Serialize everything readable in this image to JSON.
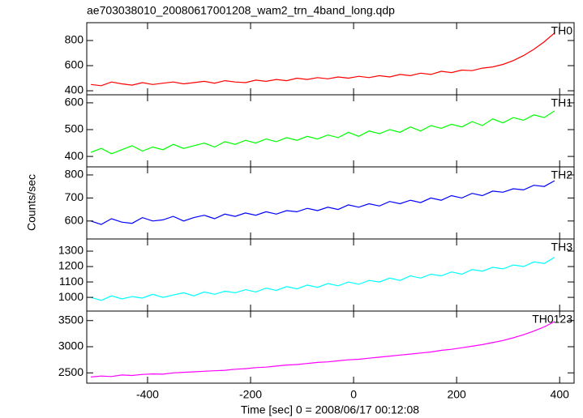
{
  "chart_data": {
    "type": "line",
    "title": "ae703038010_20080617001208_wam2_trn_4band_long.qdp",
    "x_label": "Time [sec] 0 = 2008/06/17 00:12:08",
    "y_label": "Counts/sec",
    "xlim": [
      -518,
      428
    ],
    "xticks": [
      -400,
      -200,
      0,
      200,
      400
    ],
    "x": [
      -510,
      -490,
      -470,
      -450,
      -430,
      -410,
      -390,
      -370,
      -350,
      -330,
      -310,
      -290,
      -270,
      -250,
      -230,
      -210,
      -190,
      -170,
      -150,
      -130,
      -110,
      -90,
      -70,
      -50,
      -30,
      -10,
      10,
      30,
      50,
      70,
      90,
      110,
      130,
      150,
      170,
      190,
      210,
      230,
      250,
      270,
      290,
      310,
      330,
      350,
      370,
      390
    ],
    "series": [
      {
        "name": "TH0",
        "color": "#ff0000",
        "ylim": [
          368,
          942
        ],
        "yticks": [
          400,
          600,
          800
        ],
        "values": [
          450,
          440,
          470,
          455,
          445,
          465,
          450,
          460,
          470,
          455,
          465,
          475,
          460,
          480,
          470,
          465,
          485,
          475,
          490,
          480,
          500,
          490,
          505,
          495,
          510,
          500,
          515,
          505,
          520,
          510,
          530,
          520,
          540,
          530,
          555,
          545,
          565,
          560,
          580,
          590,
          610,
          640,
          680,
          730,
          790,
          860
        ]
      },
      {
        "name": "TH1",
        "color": "#00ff00",
        "ylim": [
          361,
          630
        ],
        "yticks": [
          400,
          500,
          600
        ],
        "values": [
          415,
          430,
          410,
          425,
          440,
          420,
          435,
          425,
          445,
          430,
          440,
          450,
          435,
          455,
          445,
          460,
          450,
          465,
          455,
          470,
          460,
          475,
          465,
          480,
          470,
          490,
          475,
          495,
          485,
          500,
          490,
          510,
          495,
          515,
          505,
          520,
          510,
          530,
          515,
          540,
          525,
          545,
          535,
          555,
          545,
          570
        ]
      },
      {
        "name": "TH2",
        "color": "#0000ff",
        "ylim": [
          522,
          835
        ],
        "yticks": [
          600,
          700,
          800
        ],
        "values": [
          600,
          585,
          610,
          595,
          590,
          615,
          600,
          605,
          620,
          600,
          615,
          625,
          610,
          630,
          620,
          635,
          625,
          640,
          630,
          645,
          640,
          655,
          645,
          660,
          650,
          670,
          660,
          675,
          665,
          685,
          675,
          690,
          680,
          700,
          690,
          710,
          700,
          720,
          710,
          730,
          725,
          740,
          735,
          755,
          750,
          775
        ]
      },
      {
        "name": "TH3",
        "color": "#00ffff",
        "ylim": [
          911,
          1379
        ],
        "yticks": [
          1000,
          1100,
          1200,
          1300
        ],
        "values": [
          1000,
          980,
          1010,
          990,
          1005,
          995,
          1020,
          1000,
          1015,
          1030,
          1010,
          1035,
          1020,
          1040,
          1030,
          1050,
          1035,
          1060,
          1045,
          1070,
          1055,
          1080,
          1065,
          1090,
          1075,
          1100,
          1085,
          1110,
          1100,
          1125,
          1110,
          1140,
          1125,
          1150,
          1140,
          1165,
          1150,
          1180,
          1170,
          1195,
          1185,
          1210,
          1200,
          1230,
          1220,
          1260
        ]
      },
      {
        "name": "TH0123",
        "color": "#ff00ff",
        "ylim": [
          2303,
          3682
        ],
        "yticks": [
          2500,
          3000,
          3500
        ],
        "values": [
          2420,
          2440,
          2430,
          2460,
          2450,
          2470,
          2480,
          2475,
          2500,
          2510,
          2520,
          2530,
          2540,
          2550,
          2570,
          2580,
          2600,
          2610,
          2630,
          2650,
          2660,
          2680,
          2700,
          2710,
          2730,
          2750,
          2760,
          2780,
          2800,
          2820,
          2840,
          2860,
          2880,
          2900,
          2930,
          2950,
          2980,
          3010,
          3040,
          3080,
          3120,
          3170,
          3230,
          3300,
          3380,
          3480
        ]
      }
    ]
  }
}
